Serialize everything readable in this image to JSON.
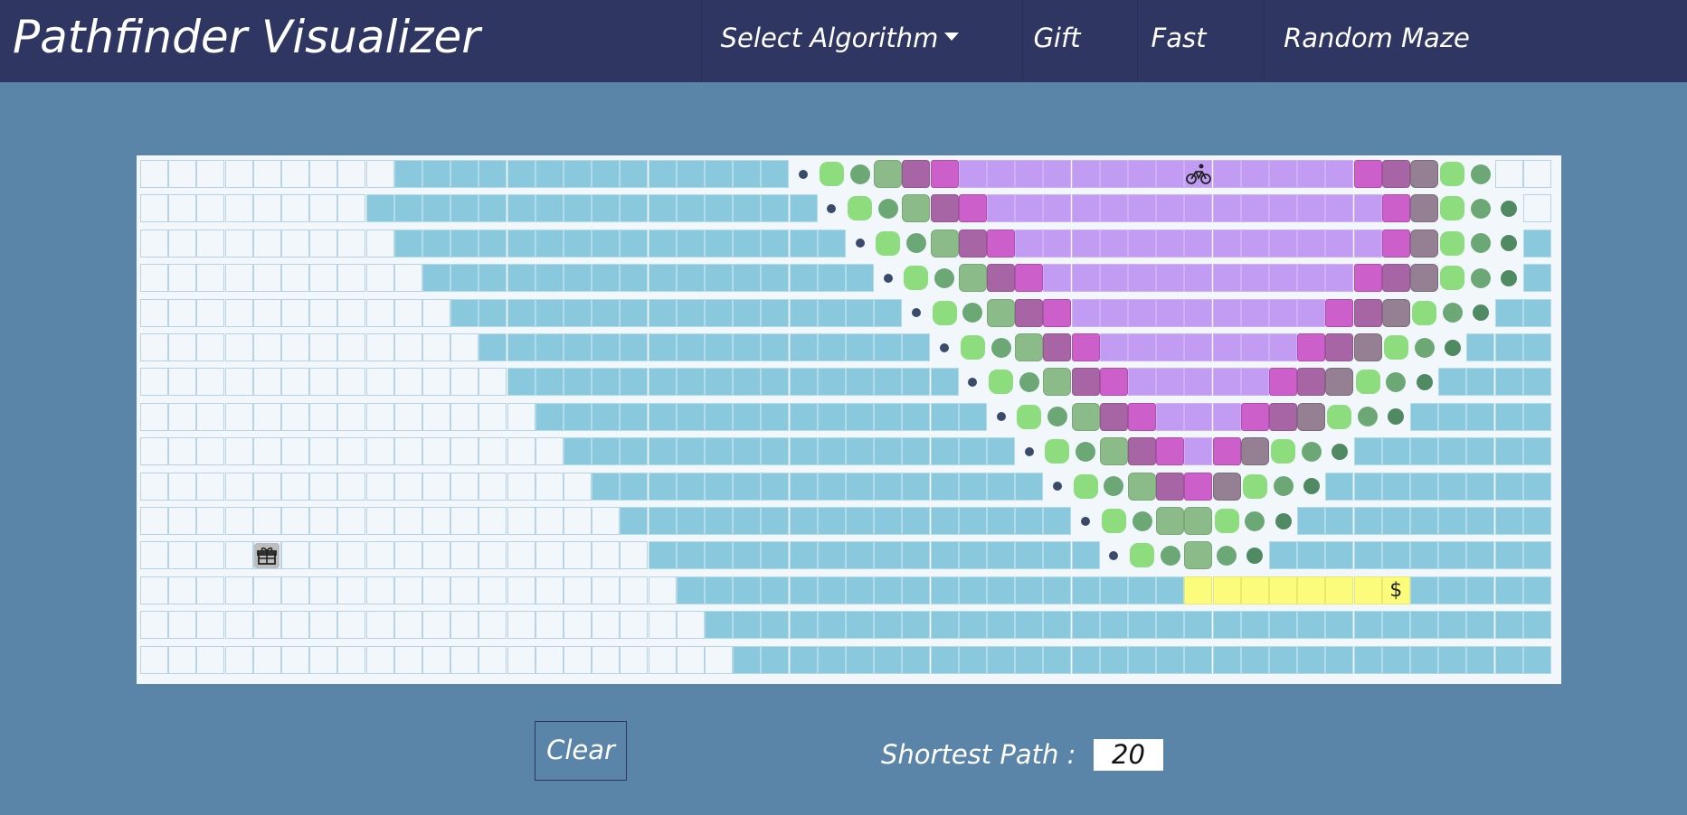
{
  "app": {
    "title": "Pathfinder Visualizer"
  },
  "nav": {
    "items": [
      {
        "label": "Select Algorithm",
        "icon": "caret-down-icon"
      },
      {
        "label": "Gift"
      },
      {
        "label": "Fast"
      },
      {
        "label": "Random Maze"
      }
    ]
  },
  "grid": {
    "rows": 15,
    "cols": 50,
    "start": {
      "row": 0,
      "col": 37,
      "icon": "bicycle-icon"
    },
    "target": {
      "row": 12,
      "col": 44,
      "symbol": "$"
    },
    "gift": {
      "row": 11,
      "col": 4,
      "icon": "gift-icon"
    },
    "walls": [
      [
        0,
        9,
        23
      ],
      [
        1,
        8,
        24
      ],
      [
        2,
        9,
        25
      ],
      [
        3,
        10,
        26
      ],
      [
        4,
        11,
        27
      ],
      [
        5,
        12,
        28
      ],
      [
        6,
        13,
        29
      ],
      [
        7,
        14,
        30
      ],
      [
        8,
        15,
        31
      ],
      [
        9,
        16,
        32
      ],
      [
        10,
        17,
        33
      ],
      [
        11,
        18,
        34
      ],
      [
        12,
        19,
        36
      ],
      [
        13,
        20,
        49
      ],
      [
        14,
        21,
        48
      ]
    ],
    "walls_right": [
      [
        2,
        49,
        49
      ],
      [
        3,
        48,
        49
      ],
      [
        4,
        47,
        49
      ],
      [
        5,
        46,
        49
      ],
      [
        6,
        45,
        49
      ],
      [
        7,
        44,
        49
      ],
      [
        8,
        43,
        49
      ],
      [
        9,
        42,
        49
      ],
      [
        10,
        41,
        49
      ],
      [
        11,
        40,
        49
      ],
      [
        12,
        45,
        49
      ],
      [
        14,
        49,
        49
      ]
    ],
    "path": [
      [
        12,
        37,
        43
      ]
    ],
    "visited": [
      {
        "row": 0,
        "cells": [
          "dd",
          "ml",
          "md",
          "sg",
          "dm",
          "mg",
          "pp",
          "pp",
          "pp",
          "pp",
          "pp",
          "pp",
          "pp",
          "pp",
          "pp",
          "pp",
          "pp",
          "pp",
          "pp",
          "pp",
          "mg",
          "dm",
          "gy",
          "ml",
          "md"
        ],
        "start": 23
      },
      {
        "row": 1,
        "cells": [
          "dd",
          "ml",
          "md",
          "sg",
          "dm",
          "mg",
          "pp",
          "pp",
          "pp",
          "pp",
          "pp",
          "pp",
          "pp",
          "pp",
          "pp",
          "pp",
          "pp",
          "pp",
          "pp",
          "pp",
          "mg",
          "gy",
          "ml",
          "md",
          "dk"
        ],
        "start": 24
      },
      {
        "row": 2,
        "cells": [
          "dd",
          "ml",
          "md",
          "sg",
          "dm",
          "mg",
          "pp",
          "pp",
          "pp",
          "pp",
          "pp",
          "pp",
          "pp",
          "pp",
          "pp",
          "pp",
          "pp",
          "pp",
          "pp",
          "mg",
          "gy",
          "ml",
          "md",
          "dk"
        ],
        "start": 25
      },
      {
        "row": 3,
        "cells": [
          "dd",
          "ml",
          "md",
          "sg",
          "dm",
          "mg",
          "pp",
          "pp",
          "pp",
          "pp",
          "pp",
          "pp",
          "pp",
          "pp",
          "pp",
          "pp",
          "pp",
          "mg",
          "dm",
          "gy",
          "ml",
          "md",
          "dk"
        ],
        "start": 26
      },
      {
        "row": 4,
        "cells": [
          "dd",
          "ml",
          "md",
          "sg",
          "dm",
          "mg",
          "pp",
          "pp",
          "pp",
          "pp",
          "pp",
          "pp",
          "pp",
          "pp",
          "pp",
          "mg",
          "dm",
          "gy",
          "ml",
          "md",
          "dk"
        ],
        "start": 27
      },
      {
        "row": 5,
        "cells": [
          "dd",
          "ml",
          "md",
          "sg",
          "dm",
          "mg",
          "pp",
          "pp",
          "pp",
          "pp",
          "pp",
          "pp",
          "pp",
          "mg",
          "dm",
          "gy",
          "ml",
          "md",
          "dk"
        ],
        "start": 28
      },
      {
        "row": 6,
        "cells": [
          "dd",
          "ml",
          "md",
          "sg",
          "dm",
          "mg",
          "pp",
          "pp",
          "pp",
          "pp",
          "pp",
          "mg",
          "dm",
          "gy",
          "ml",
          "md",
          "dk"
        ],
        "start": 29
      },
      {
        "row": 7,
        "cells": [
          "dd",
          "ml",
          "md",
          "sg",
          "dm",
          "mg",
          "pp",
          "pp",
          "pp",
          "mg",
          "dm",
          "gy",
          "ml",
          "md",
          "dk"
        ],
        "start": 30
      },
      {
        "row": 8,
        "cells": [
          "dd",
          "ml",
          "md",
          "sg",
          "dm",
          "mg",
          "pp",
          "mg",
          "gy",
          "ml",
          "md",
          "dk"
        ],
        "start": 31
      },
      {
        "row": 9,
        "cells": [
          "dd",
          "ml",
          "md",
          "sg",
          "dm",
          "mg",
          "gy",
          "ml",
          "md",
          "dk"
        ],
        "start": 32
      },
      {
        "row": 10,
        "cells": [
          "dd",
          "ml",
          "md",
          "sg",
          "sg",
          "ml",
          "md",
          "dk"
        ],
        "start": 33
      },
      {
        "row": 11,
        "cells": [
          "dd",
          "ml",
          "md",
          "sg",
          "md",
          "dk"
        ],
        "start": 34
      }
    ]
  },
  "controls": {
    "clear_label": "Clear",
    "shortest_path_label": "Shortest Path :",
    "shortest_path_value": "20"
  },
  "colors": {
    "navbar": "#2e3661",
    "background": "#5a84a8",
    "wall": "#8ac8de",
    "visited": "#c29cf3",
    "path": "#fcfc7c"
  }
}
